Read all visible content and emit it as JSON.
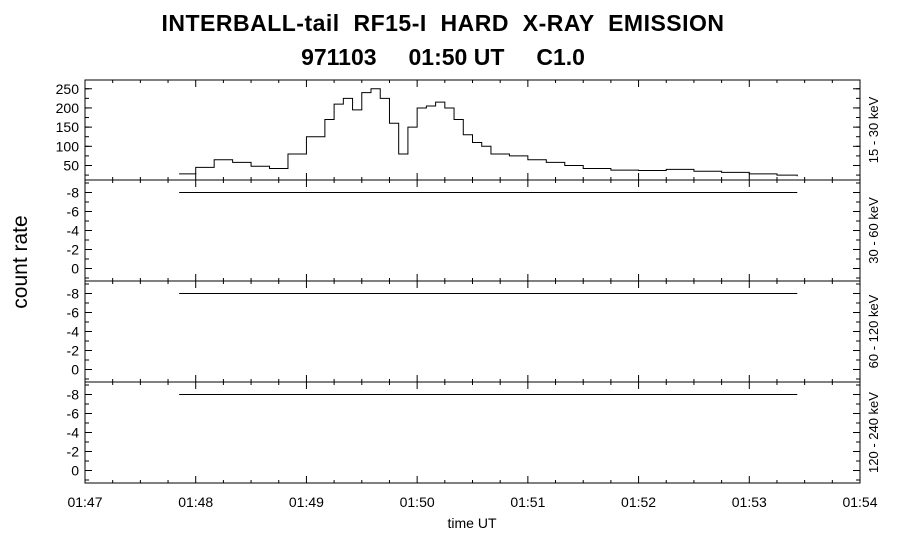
{
  "titles": {
    "line1": "INTERBALL-tail  RF15-I  HARD  X-RAY  EMISSION",
    "line2": "971103     01:50 UT     C1.0"
  },
  "chart_data": {
    "type": "line",
    "title": "INTERBALL-tail  RF15-I  HARD  X-RAY  EMISSION",
    "subtitle": "971103     01:50 UT     C1.0",
    "xlabel": "time UT",
    "ylabel": "count rate",
    "x_ticks": [
      "01:47",
      "01:48",
      "01:49",
      "01:50",
      "01:51",
      "01:52",
      "01:53",
      "01:54"
    ],
    "xlim": [
      "01:47:00",
      "01:54:00"
    ],
    "grid": false,
    "panels": [
      {
        "channel": "15 - 30 keV",
        "ylim": [
          20,
          265
        ],
        "y_ticks": [
          50,
          100,
          150,
          200,
          250
        ],
        "series": [
          {
            "x": [
              "01:47:51",
              "01:48:00",
              "01:48:10",
              "01:48:20",
              "01:48:30",
              "01:48:40",
              "01:48:50",
              "01:49:00",
              "01:49:10",
              "01:49:15",
              "01:49:20",
              "01:49:25",
              "01:49:30",
              "01:49:35",
              "01:49:40",
              "01:49:45",
              "01:49:50",
              "01:49:55",
              "01:50:00",
              "01:50:05",
              "01:50:10",
              "01:50:15",
              "01:50:20",
              "01:50:25",
              "01:50:30",
              "01:50:35",
              "01:50:40",
              "01:50:50",
              "01:51:00",
              "01:51:10",
              "01:51:20",
              "01:51:30",
              "01:51:45",
              "01:52:00",
              "01:52:15",
              "01:52:30",
              "01:52:45",
              "01:53:00",
              "01:53:15",
              "01:53:26"
            ],
            "y": [
              28,
              45,
              65,
              58,
              48,
              42,
              80,
              125,
              170,
              210,
              225,
              195,
              240,
              250,
              225,
              160,
              80,
              150,
              200,
              205,
              215,
              200,
              170,
              130,
              110,
              100,
              80,
              75,
              65,
              58,
              50,
              42,
              38,
              37,
              40,
              35,
              32,
              28,
              25,
              22
            ]
          }
        ]
      },
      {
        "channel": "30 - 60 keV",
        "ylim": [
          -9,
          1
        ],
        "y_ticks": [
          -8,
          -6,
          -4,
          -2,
          0
        ],
        "series": [
          {
            "x": [
              "01:47:51",
              "01:53:26"
            ],
            "y": [
              -8,
              -8
            ]
          }
        ]
      },
      {
        "channel": "60 - 120 keV",
        "ylim": [
          -9,
          1
        ],
        "y_ticks": [
          -8,
          -6,
          -4,
          -2,
          0
        ],
        "series": [
          {
            "x": [
              "01:47:51",
              "01:53:26"
            ],
            "y": [
              -8,
              -8
            ]
          }
        ]
      },
      {
        "channel": "120 - 240 keV",
        "ylim": [
          -9,
          1
        ],
        "y_ticks": [
          -8,
          -6,
          -4,
          -2,
          0
        ],
        "series": [
          {
            "x": [
              "01:47:51",
              "01:53:26"
            ],
            "y": [
              -8,
              -8
            ]
          }
        ]
      }
    ]
  }
}
